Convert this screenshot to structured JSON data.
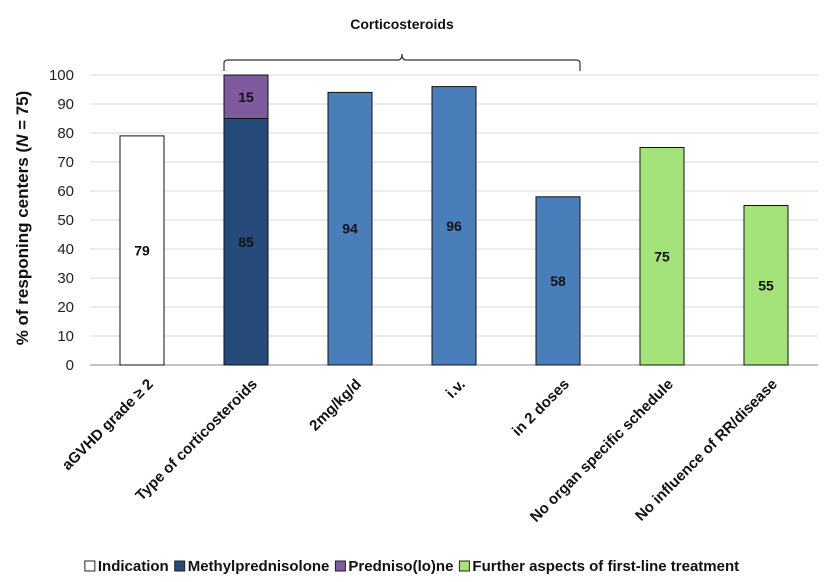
{
  "chart_data": {
    "type": "bar",
    "ylabel": {
      "pre": "% of responing centers (",
      "n": "N",
      "post": " = 75)"
    },
    "ylim": [
      0,
      100
    ],
    "yticks": [
      "0",
      "10",
      "20",
      "30",
      "40",
      "50",
      "60",
      "70",
      "80",
      "90",
      "100"
    ],
    "grid": true,
    "legend_position": "bottom",
    "categories": [
      "aGVHD grade ≥ 2",
      "Type of corticosteroids",
      "2mg/kg/d",
      "i.v.",
      "in 2 doses",
      "No organ specific schedule",
      "No influence of RR/disease"
    ],
    "series": [
      {
        "name": "Indication",
        "color": "#ffffff",
        "values": [
          79,
          null,
          null,
          null,
          null,
          null,
          null
        ],
        "labels": [
          "79",
          "",
          "",
          "",
          "",
          "",
          ""
        ]
      },
      {
        "name": "Methylprednisolone",
        "color": "#264b7a",
        "values": [
          null,
          85,
          94,
          96,
          58,
          null,
          null
        ],
        "labels": [
          "",
          "85",
          "94",
          "96",
          "58",
          "",
          ""
        ],
        "bar_colors": [
          null,
          "#264b7a",
          "#4a7ebb",
          "#4a7ebb",
          "#4a7ebb",
          null,
          null
        ]
      },
      {
        "name": "Predniso(lo)ne",
        "color": "#7e5b9e",
        "values": [
          null,
          15,
          null,
          null,
          null,
          null,
          null
        ],
        "labels": [
          "",
          "15",
          "",
          "",
          "",
          "",
          ""
        ]
      },
      {
        "name": "Further aspects of first-line treatment",
        "color": "#a3e37a",
        "values": [
          null,
          null,
          null,
          null,
          null,
          75,
          55
        ],
        "labels": [
          "",
          "",
          "",
          "",
          "",
          "75",
          "55"
        ]
      }
    ],
    "annotation": "Corticosteroids"
  }
}
